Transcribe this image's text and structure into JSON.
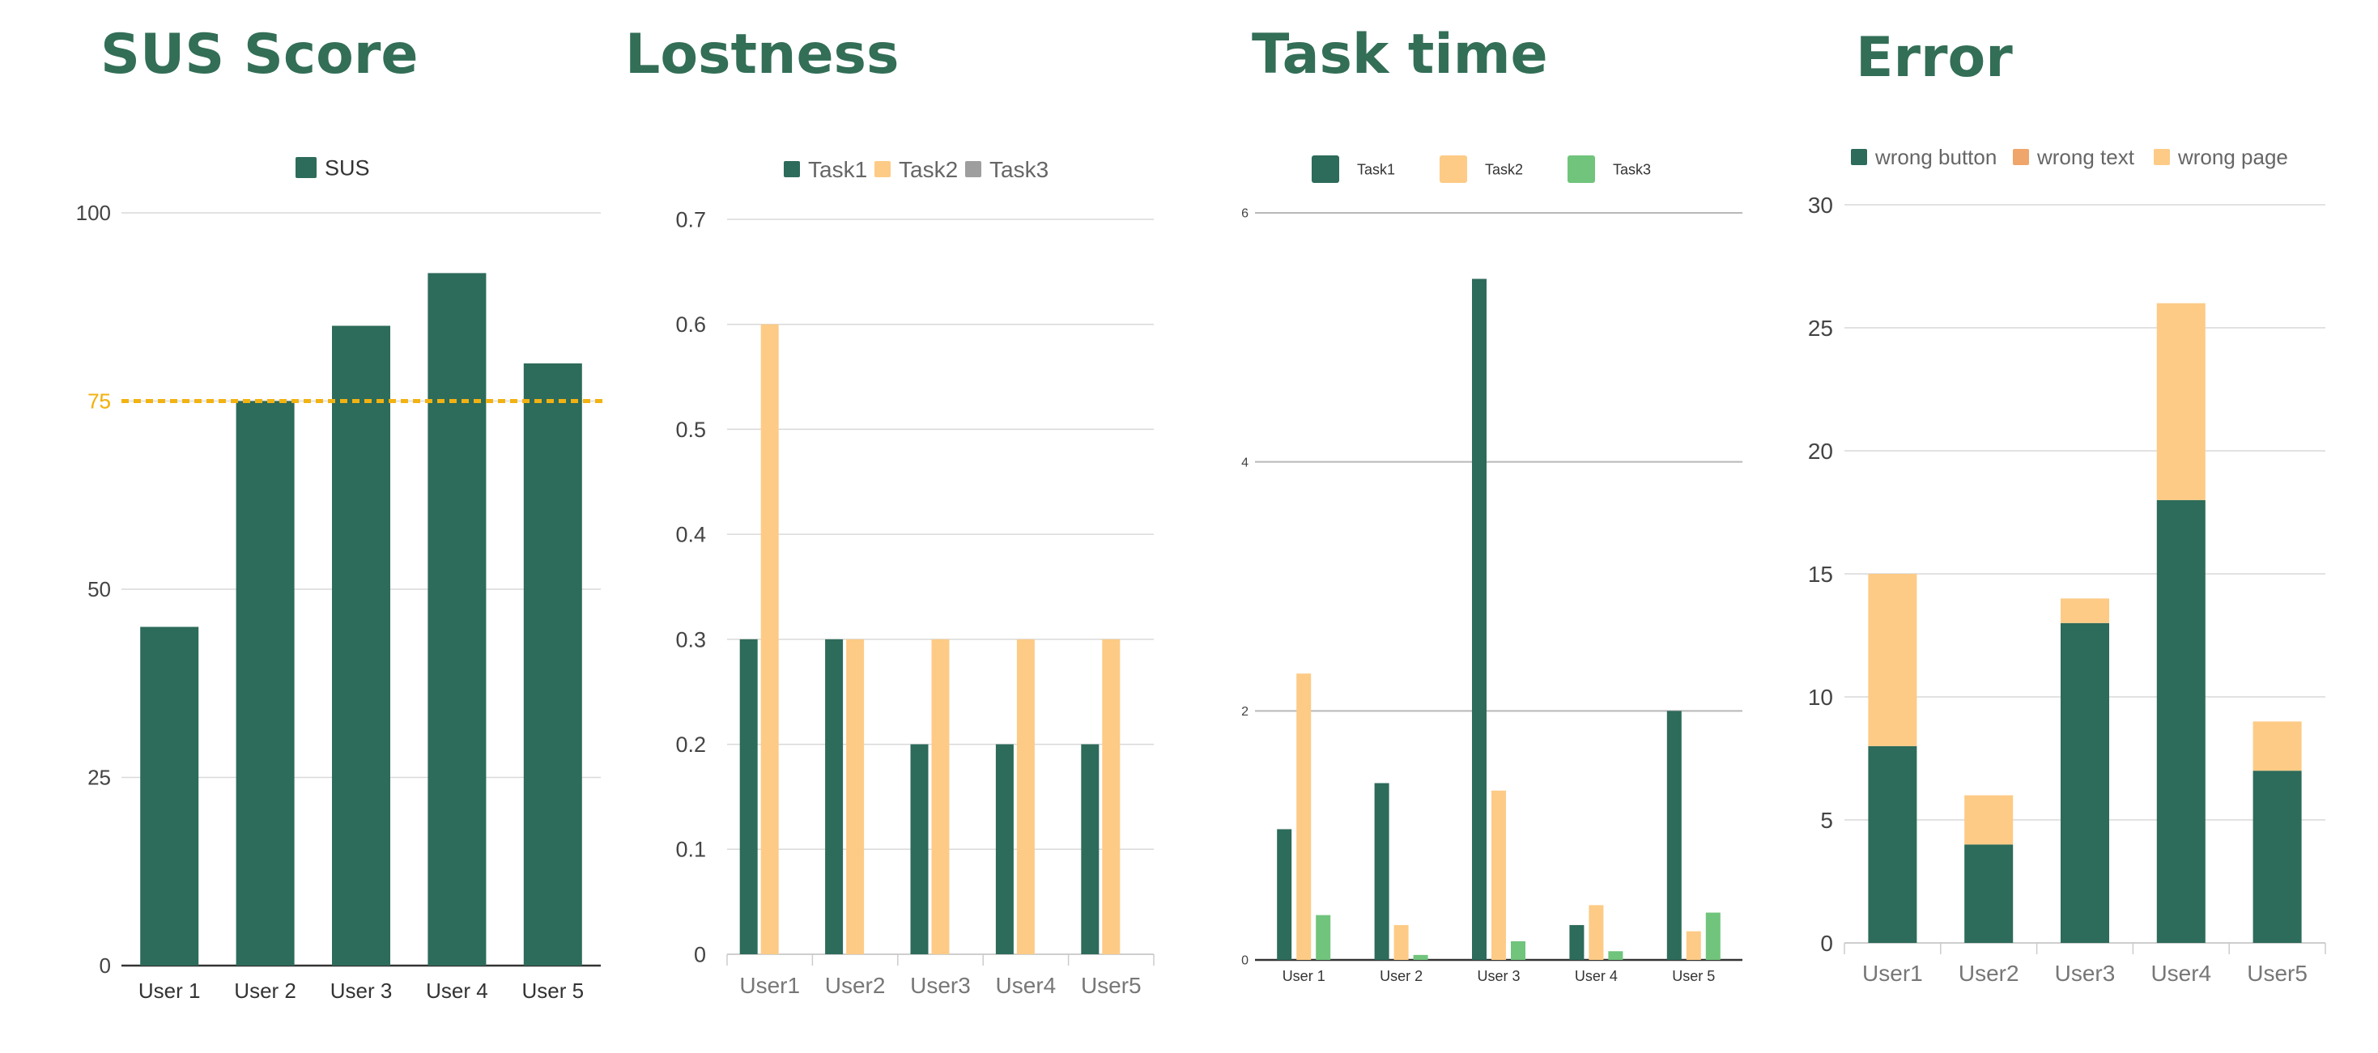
{
  "colors": {
    "title": "#336e57",
    "dark_green": "#2d6b5a",
    "orange_light": "#fdcb86",
    "grey": "#9e9e9e",
    "light_green": "#70c47c",
    "orange_dark": "#f0a56a",
    "target_line": "#f2b211",
    "gridline": "#d9d9d9",
    "axis": "#333333",
    "tick_text": "#444444"
  },
  "chart_data": [
    {
      "id": "sus",
      "type": "bar",
      "title": "SUS Score",
      "categories": [
        "User 1",
        "User 2",
        "User 3",
        "User 4",
        "User 5"
      ],
      "series": [
        {
          "name": "SUS",
          "color": "#2d6b5a",
          "values": [
            45,
            75,
            85,
            92,
            80
          ]
        }
      ],
      "y_ticks": [
        "0",
        "25",
        "50",
        "75",
        "100"
      ],
      "ylim": [
        0,
        100
      ],
      "grid": true,
      "legend": "top",
      "reference_line": {
        "value": 75,
        "label": "75",
        "color": "#f2b211",
        "style": "dashed"
      }
    },
    {
      "id": "lostness",
      "type": "bar",
      "title": "Lostness",
      "categories": [
        "User1",
        "User2",
        "User3",
        "User4",
        "User5"
      ],
      "series": [
        {
          "name": "Task1",
          "color": "#2d6b5a",
          "values": [
            0.3,
            0.3,
            0.2,
            0.2,
            0.2
          ]
        },
        {
          "name": "Task2",
          "color": "#fdcb86",
          "values": [
            0.6,
            0.3,
            0.3,
            0.3,
            0.3
          ]
        },
        {
          "name": "Task3",
          "color": "#9e9e9e",
          "values": [
            0,
            0,
            0,
            0,
            0
          ]
        }
      ],
      "y_ticks": [
        "0",
        "0.1",
        "0.2",
        "0.3",
        "0.4",
        "0.5",
        "0.6",
        "0.7"
      ],
      "ylim": [
        0,
        0.7
      ],
      "grid": true,
      "legend": "top"
    },
    {
      "id": "tasktime",
      "type": "bar",
      "title": "Task time",
      "categories": [
        "User 1",
        "User 2",
        "User 3",
        "User 4",
        "User 5"
      ],
      "series": [
        {
          "name": "Task1",
          "color": "#2d6b5a",
          "values": [
            1.05,
            1.42,
            5.47,
            0.28,
            2.0
          ]
        },
        {
          "name": "Task2",
          "color": "#fdcb86",
          "values": [
            2.3,
            0.28,
            1.36,
            0.44,
            0.23
          ]
        },
        {
          "name": "Task3",
          "color": "#70c47c",
          "values": [
            0.36,
            0.04,
            0.15,
            0.07,
            0.38
          ]
        }
      ],
      "y_ticks": [
        "0",
        "2",
        "4",
        "6"
      ],
      "ylim": [
        0,
        6
      ],
      "grid": true,
      "legend": "top"
    },
    {
      "id": "error",
      "type": "stacked-bar",
      "title": "Error",
      "categories": [
        "User1",
        "User2",
        "User3",
        "User4",
        "User5"
      ],
      "series": [
        {
          "name": "wrong button",
          "color": "#2d6b5a",
          "values": [
            8,
            4,
            13,
            18,
            7
          ]
        },
        {
          "name": "wrong text",
          "color": "#f0a56a",
          "values": [
            0,
            0,
            0,
            0,
            0
          ]
        },
        {
          "name": "wrong page",
          "color": "#fdcb86",
          "values": [
            7,
            2,
            1,
            8,
            2
          ]
        }
      ],
      "y_ticks": [
        "0",
        "5",
        "10",
        "15",
        "20",
        "25",
        "30"
      ],
      "ylim": [
        0,
        30
      ],
      "grid": true,
      "legend": "top"
    }
  ]
}
